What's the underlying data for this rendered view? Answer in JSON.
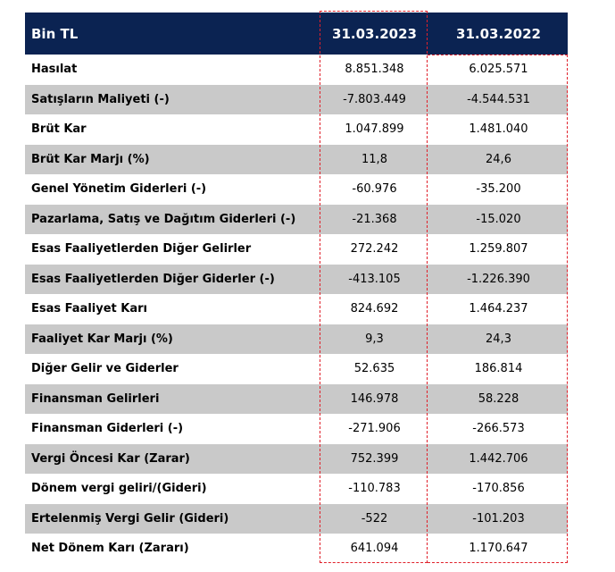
{
  "header": {
    "label": "Bin TL",
    "col1": "31.03.2023",
    "col2": "31.03.2022"
  },
  "rows": [
    {
      "label": "Hasılat",
      "v1": "8.851.348",
      "v2": "6.025.571"
    },
    {
      "label": "Satışların Maliyeti (-)",
      "v1": "-7.803.449",
      "v2": "-4.544.531"
    },
    {
      "label": "Brüt Kar",
      "v1": "1.047.899",
      "v2": "1.481.040"
    },
    {
      "label": "Brüt Kar Marjı (%)",
      "v1": "11,8",
      "v2": "24,6"
    },
    {
      "label": "Genel Yönetim Giderleri (-)",
      "v1": "-60.976",
      "v2": "-35.200"
    },
    {
      "label": "Pazarlama, Satış ve Dağıtım Giderleri (-)",
      "v1": "-21.368",
      "v2": "-15.020"
    },
    {
      "label": "Esas Faaliyetlerden Diğer Gelirler",
      "v1": "272.242",
      "v2": "1.259.807"
    },
    {
      "label": "Esas Faaliyetlerden Diğer Giderler (-)",
      "v1": "-413.105",
      "v2": "-1.226.390"
    },
    {
      "label": "Esas Faaliyet Karı",
      "v1": "824.692",
      "v2": "1.464.237"
    },
    {
      "label": "Faaliyet Kar Marjı (%)",
      "v1": "9,3",
      "v2": "24,3"
    },
    {
      "label": "Diğer Gelir ve Giderler",
      "v1": "52.635",
      "v2": "186.814"
    },
    {
      "label": "Finansman Gelirleri",
      "v1": "146.978",
      "v2": "58.228"
    },
    {
      "label": "Finansman Giderleri (-)",
      "v1": "-271.906",
      "v2": "-266.573"
    },
    {
      "label": "Vergi Öncesi Kar (Zarar)",
      "v1": "752.399",
      "v2": "1.442.706"
    },
    {
      "label": "Dönem vergi geliri/(Gideri)",
      "v1": "-110.783",
      "v2": "-170.856"
    },
    {
      "label": "Ertelenmiş Vergi Gelir (Gideri)",
      "v1": "-522",
      "v2": "-101.203"
    },
    {
      "label": "Net Dönem Karı (Zararı)",
      "v1": "641.094",
      "v2": "1.170.647"
    }
  ],
  "colors": {
    "header_bg": "#0b2352",
    "shade": "#c9c9c9",
    "highlight": "#e0202a"
  }
}
